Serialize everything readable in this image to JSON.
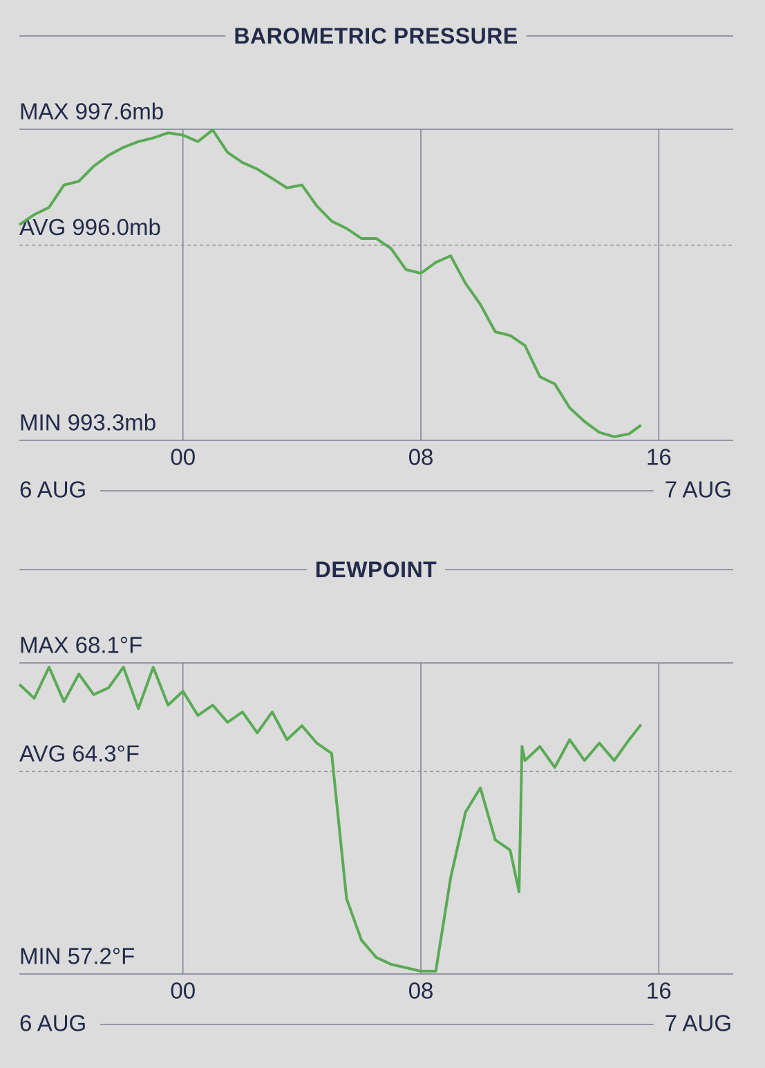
{
  "chart_data": [
    {
      "type": "line",
      "title": "BAROMETRIC PRESSURE",
      "color": "#5aaa55",
      "x": [
        -5.5,
        -5,
        -4.5,
        -4,
        -3.5,
        -3,
        -2.5,
        -2,
        -1.5,
        -1,
        -0.5,
        0,
        0.5,
        1,
        1.5,
        2,
        2.5,
        3,
        3.5,
        4,
        4.5,
        5,
        5.5,
        6,
        6.5,
        7,
        7.5,
        8,
        8.5,
        9,
        9.5,
        10,
        10.5,
        11,
        11.5,
        12,
        12.5,
        13,
        13.5,
        14,
        14.5,
        15,
        15.4
      ],
      "values": [
        996.28,
        996.42,
        996.52,
        996.83,
        996.88,
        997.09,
        997.24,
        997.35,
        997.43,
        997.48,
        997.55,
        997.52,
        997.43,
        997.59,
        997.28,
        997.14,
        997.05,
        996.92,
        996.79,
        996.83,
        996.54,
        996.33,
        996.23,
        996.09,
        996.09,
        995.95,
        995.66,
        995.61,
        995.76,
        995.85,
        995.47,
        995.18,
        994.8,
        994.75,
        994.61,
        994.18,
        994.08,
        993.75,
        993.56,
        993.41,
        993.35,
        993.39,
        993.51
      ],
      "xlim": [
        -5.5,
        18.5
      ],
      "xticks": [
        {
          "value": 0,
          "label": "00"
        },
        {
          "value": 8,
          "label": "08"
        },
        16
      ],
      "ylim": [
        993.3,
        997.6
      ],
      "yticks": [
        {
          "value": 997.6,
          "label": "MAX 997.6mb"
        },
        {
          "value": 996.0,
          "label": "AVG 996.0mb"
        },
        {
          "value": 993.3,
          "label": "MIN 993.3mb"
        }
      ],
      "date_labels": [
        "6 AUG",
        "7 AUG"
      ]
    },
    {
      "type": "line",
      "title": "DEWPOINT",
      "color": "#5aaa55",
      "x": [
        -5.5,
        -5,
        -4.5,
        -4,
        -3.5,
        -3,
        -2.5,
        -2,
        -1.5,
        -1,
        -0.5,
        0,
        0.5,
        1,
        1.5,
        2,
        2.5,
        3,
        3.5,
        4,
        4.5,
        5,
        5.5,
        6,
        6.5,
        7,
        7.5,
        8,
        8.5,
        9,
        9.5,
        10,
        10.5,
        11,
        11.3,
        11.4,
        11.5,
        12,
        12.5,
        13,
        13.5,
        14,
        14.5,
        15,
        15.4
      ],
      "values": [
        67.35,
        66.86,
        67.95,
        66.74,
        67.71,
        66.99,
        67.23,
        67.95,
        66.5,
        67.95,
        66.62,
        67.11,
        66.26,
        66.62,
        66.02,
        66.38,
        65.65,
        66.38,
        65.41,
        65.9,
        65.29,
        64.93,
        59.84,
        58.39,
        57.78,
        57.54,
        57.42,
        57.3,
        57.3,
        60.57,
        62.87,
        63.72,
        61.9,
        61.54,
        60.08,
        65.17,
        64.68,
        65.17,
        64.44,
        65.41,
        64.68,
        65.29,
        64.68,
        65.41,
        65.94
      ],
      "xlim": [
        -5.5,
        18.5
      ],
      "xticks": [
        {
          "value": 0,
          "label": "00"
        },
        {
          "value": 8,
          "label": "08"
        },
        16
      ],
      "ylim": [
        57.2,
        68.1
      ],
      "yticks": [
        {
          "value": 68.1,
          "label": "MAX 68.1°F"
        },
        {
          "value": 64.3,
          "label": "AVG 64.3°F"
        },
        {
          "value": 57.2,
          "label": "MIN 57.2°F"
        }
      ],
      "date_labels": [
        "6 AUG",
        "7 AUG"
      ]
    }
  ]
}
